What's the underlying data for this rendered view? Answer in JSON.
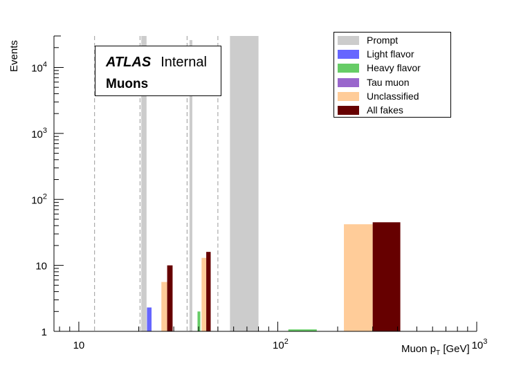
{
  "chart_data": {
    "type": "bar",
    "title": "",
    "xlabel": "Muon p_T [GeV]",
    "xlabel_main": "Muon p",
    "xlabel_sub": "T",
    "xlabel_unit": " [GeV]",
    "ylabel": "Events",
    "xscale": "log",
    "yscale": "log",
    "xlim": [
      7.5,
      1000
    ],
    "ylim": [
      1,
      30000
    ],
    "x_ticks": [
      {
        "value": 10,
        "label": "10",
        "exp": ""
      },
      {
        "value": 100,
        "label": "10",
        "exp": "2"
      },
      {
        "value": 1000,
        "label": "10",
        "exp": "3"
      }
    ],
    "y_ticks": [
      {
        "value": 1,
        "label": "1",
        "exp": ""
      },
      {
        "value": 10,
        "label": "10",
        "exp": ""
      },
      {
        "value": 100,
        "label": "10",
        "exp": "2"
      },
      {
        "value": 1000,
        "label": "10",
        "exp": "3"
      },
      {
        "value": 10000,
        "label": "10",
        "exp": "4"
      }
    ],
    "bin_edges": [
      12,
      20.3,
      35,
      50,
      1000
    ],
    "grid": false,
    "legend_position": "top-right",
    "series": [
      {
        "name": "Prompt",
        "color": "#cccccc",
        "bars": [
          {
            "x0": 20.6,
            "x1": 21.9,
            "y": 30000
          },
          {
            "x0": 36.0,
            "x1": 37.2,
            "y": 26000
          },
          {
            "x0": 57.5,
            "x1": 80.0,
            "y": 30000
          }
        ]
      },
      {
        "name": "Light flavor",
        "color": "#6666ff",
        "bars": [
          {
            "x0": 22.0,
            "x1": 23.2,
            "y": 2.3
          }
        ]
      },
      {
        "name": "Heavy flavor",
        "color": "#66cc66",
        "bars": [
          {
            "x0": 39.5,
            "x1": 40.8,
            "y": 2.0
          },
          {
            "x0": 113,
            "x1": 157,
            "y": 1.07
          }
        ]
      },
      {
        "name": "Tau muon",
        "color": "#9966cc",
        "bars": []
      },
      {
        "name": "Unclassified",
        "color": "#ffcc99",
        "bars": [
          {
            "x0": 26.0,
            "x1": 27.8,
            "y": 5.6
          },
          {
            "x0": 41.4,
            "x1": 43.7,
            "y": 13
          },
          {
            "x0": 215,
            "x1": 300,
            "y": 42
          }
        ]
      },
      {
        "name": "All fakes",
        "color": "#660000",
        "bars": [
          {
            "x0": 27.8,
            "x1": 29.6,
            "y": 10
          },
          {
            "x0": 43.7,
            "x1": 46.0,
            "y": 16
          },
          {
            "x0": 300,
            "x1": 413,
            "y": 45
          }
        ]
      }
    ]
  },
  "label": {
    "experiment": "ATLAS",
    "status": "Internal",
    "particle": "Muons"
  }
}
